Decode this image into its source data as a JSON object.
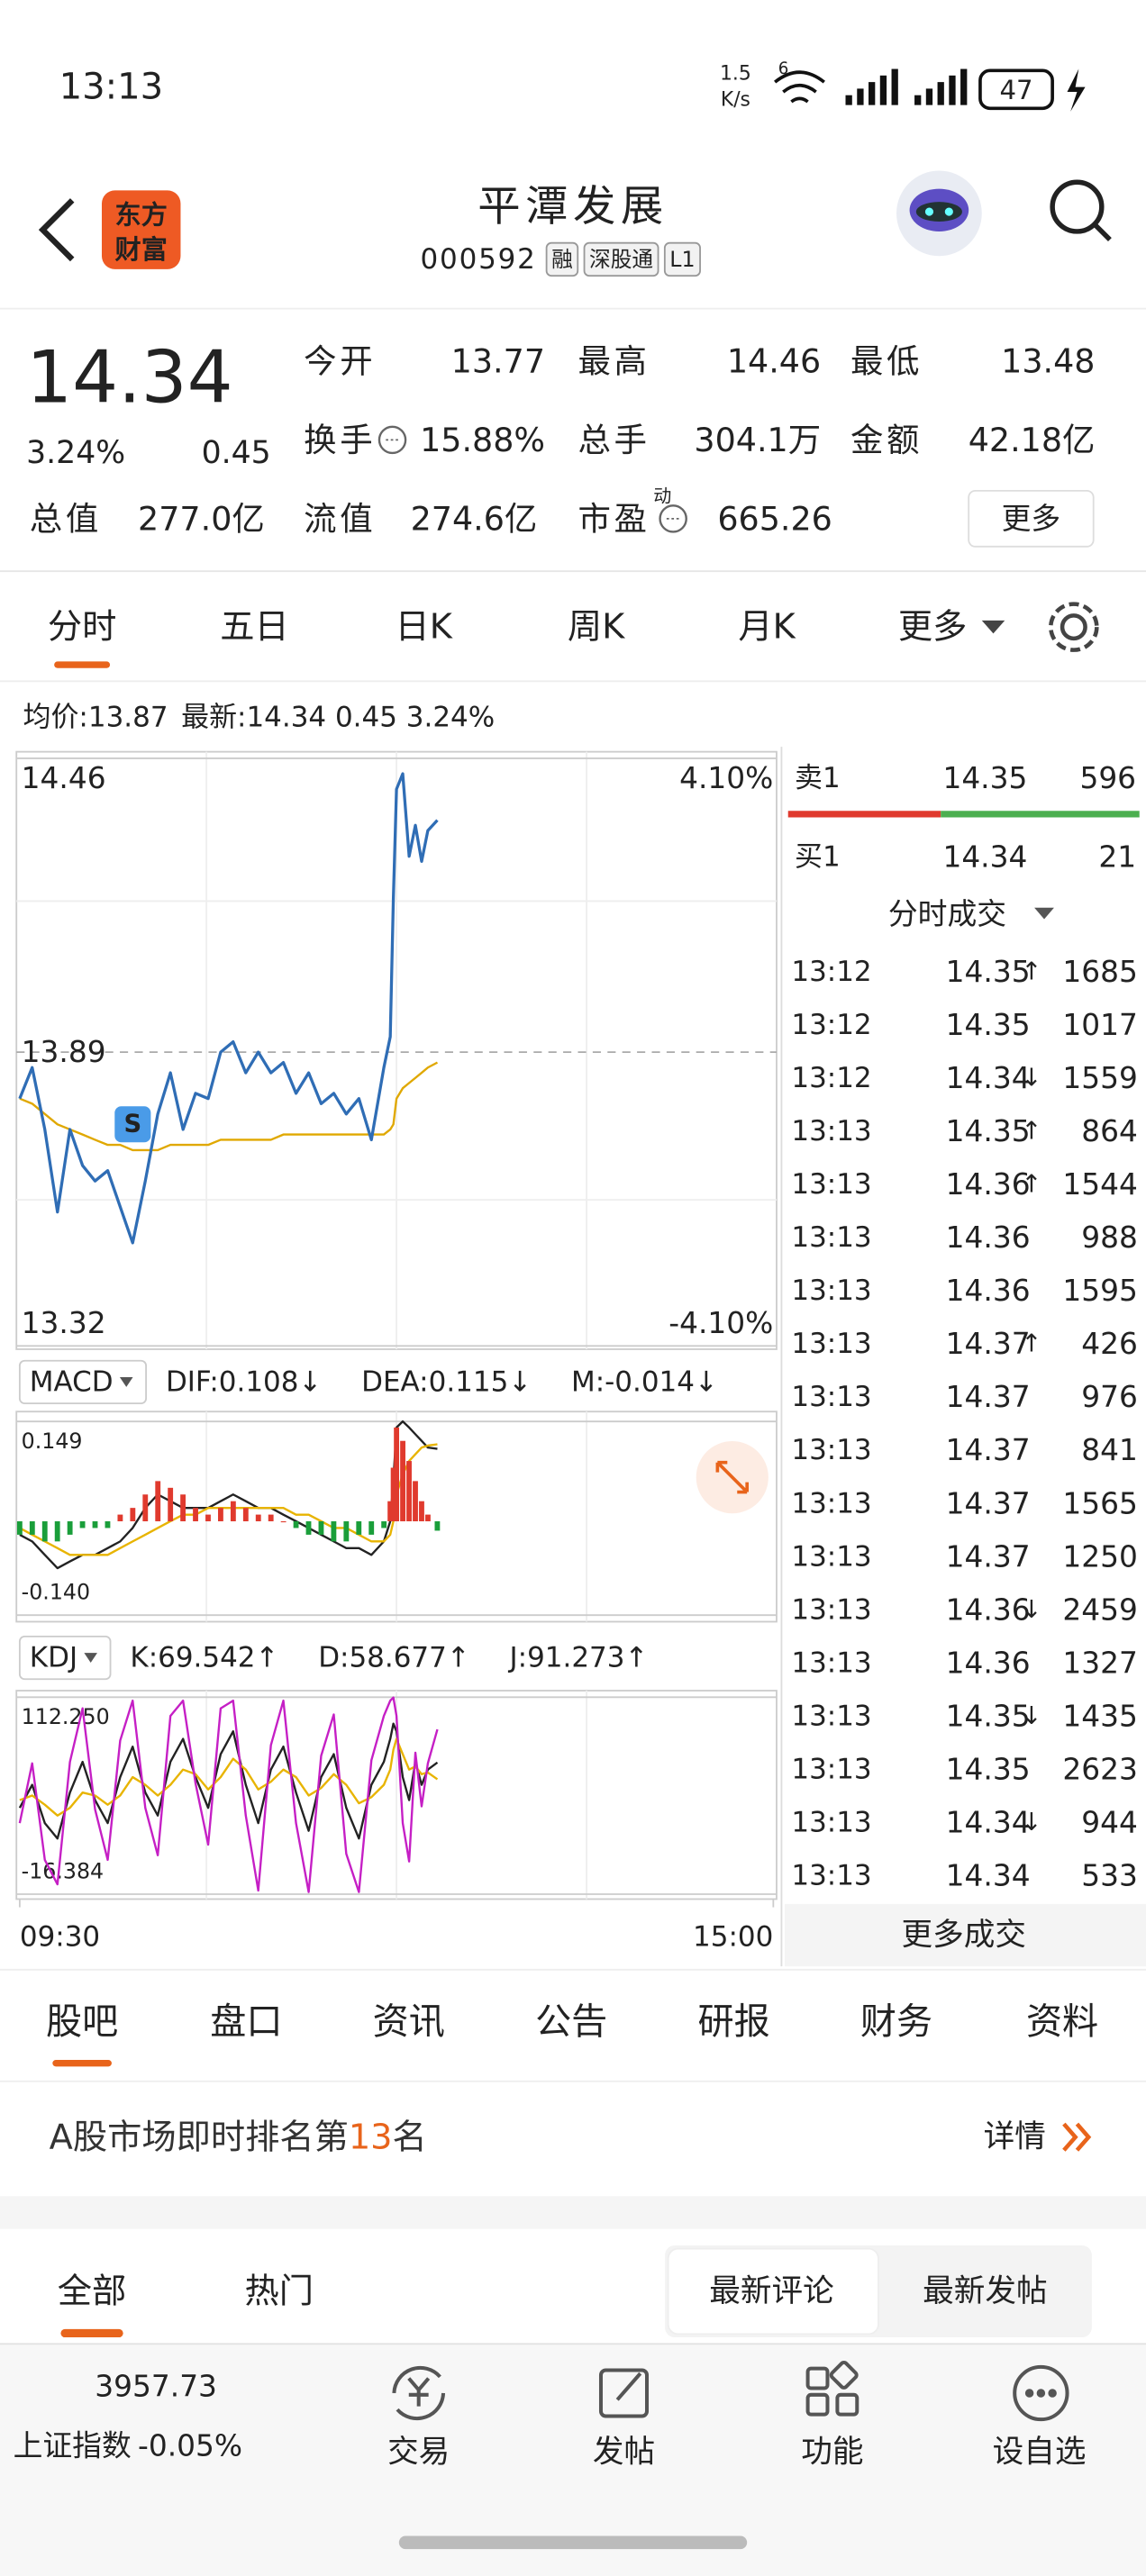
{
  "status": {
    "time": "13:13",
    "speed": "1.5",
    "speed_unit": "K/s",
    "wifi_label": "6",
    "battery": "47"
  },
  "header": {
    "logo": [
      "东方",
      "财富"
    ],
    "title": "平潭发展",
    "code": "000592",
    "tags": [
      "融",
      "深股通",
      "L1"
    ]
  },
  "quote": {
    "price": "14.34",
    "change_pct": "3.24%",
    "change": "0.45",
    "color": "#e03a2e",
    "stats": [
      [
        {
          "label": "今开",
          "value": "13.77",
          "color": "#1a9e3a"
        },
        {
          "label": "最高",
          "value": "14.46",
          "color": "#e03a2e"
        },
        {
          "label": "最低",
          "value": "13.48",
          "color": "#1a9e3a"
        }
      ],
      [
        {
          "label": "换手",
          "value": "15.88%",
          "icon": true
        },
        {
          "label": "总手",
          "value": "304.1万"
        },
        {
          "label": "金额",
          "value": "42.18亿"
        }
      ],
      [
        {
          "label": "总值",
          "value": "277.0亿"
        },
        {
          "label": "流值",
          "value": "274.6亿"
        },
        {
          "label": "市盈",
          "sup": "动",
          "value": "665.26",
          "icon": true
        }
      ]
    ],
    "more": "更多"
  },
  "period_tabs": {
    "items": [
      "分时",
      "五日",
      "日K",
      "周K",
      "月K",
      "更多"
    ],
    "active": 0
  },
  "chart_data": [
    {
      "type": "line",
      "x": [
        "09:30",
        "09:34",
        "09:38",
        "09:42",
        "09:46",
        "09:50",
        "09:54",
        "09:58",
        "10:02",
        "10:06",
        "10:10",
        "10:14",
        "10:18",
        "10:22",
        "10:26",
        "10:30",
        "10:34",
        "10:38",
        "10:42",
        "10:46",
        "10:50",
        "10:54",
        "10:58",
        "11:02",
        "11:06",
        "11:10",
        "11:14",
        "11:18",
        "11:22",
        "11:26",
        "11:28",
        "11:29",
        "13:00",
        "13:02",
        "13:04",
        "13:06",
        "13:08",
        "13:10",
        "13:13"
      ],
      "xlim": [
        "09:30",
        "15:00"
      ],
      "xticks": [
        "09:30",
        "15:00"
      ],
      "ylim": [
        13.32,
        14.46
      ],
      "yticks": [
        13.32,
        13.89,
        14.46
      ],
      "y2lim": [
        -4.1,
        4.1
      ],
      "y2ticks": [
        {
          "value": -4.1,
          "label": "-4.10%"
        },
        {
          "value": 4.1,
          "label": "4.10%"
        }
      ],
      "series": [
        {
          "name": "均价:13.87",
          "color": "#e0a800",
          "values": [
            13.8,
            13.79,
            13.77,
            13.75,
            13.74,
            13.73,
            13.72,
            13.71,
            13.71,
            13.7,
            13.7,
            13.7,
            13.71,
            13.71,
            13.71,
            13.71,
            13.72,
            13.72,
            13.72,
            13.72,
            13.72,
            13.73,
            13.73,
            13.73,
            13.73,
            13.73,
            13.73,
            13.73,
            13.73,
            13.73,
            13.74,
            13.75,
            13.8,
            13.82,
            13.83,
            13.84,
            13.85,
            13.86,
            13.87
          ]
        },
        {
          "name": "最新:14.34 0.45 3.24%",
          "color": "#2f6db5",
          "values": [
            13.8,
            13.86,
            13.74,
            13.58,
            13.74,
            13.67,
            13.64,
            13.66,
            13.59,
            13.52,
            13.64,
            13.77,
            13.85,
            13.74,
            13.81,
            13.8,
            13.89,
            13.91,
            13.85,
            13.89,
            13.85,
            13.87,
            13.81,
            13.85,
            13.79,
            13.81,
            13.77,
            13.8,
            13.72,
            13.86,
            13.92,
            14.19,
            14.4,
            14.43,
            14.27,
            14.33,
            14.26,
            14.32,
            14.34
          ]
        }
      ],
      "annotations": [
        {
          "text": "S",
          "x": "10:06",
          "y": 13.75
        }
      ]
    },
    {
      "type": "combo",
      "title": "MACD",
      "x": [
        "09:30",
        "09:34",
        "09:38",
        "09:42",
        "09:46",
        "09:50",
        "09:54",
        "09:58",
        "10:02",
        "10:06",
        "10:10",
        "10:14",
        "10:18",
        "10:22",
        "10:26",
        "10:30",
        "10:34",
        "10:38",
        "10:42",
        "10:46",
        "10:50",
        "10:54",
        "10:58",
        "11:02",
        "11:06",
        "11:10",
        "11:14",
        "11:18",
        "11:22",
        "11:26",
        "11:28",
        "11:29",
        "13:00",
        "13:02",
        "13:04",
        "13:06",
        "13:08",
        "13:10",
        "13:13"
      ],
      "xlim": [
        "09:30",
        "15:00"
      ],
      "ylim": [
        -0.14,
        0.149
      ],
      "yticks": [
        {
          "value": -0.14,
          "label": "-0.140"
        },
        0.149
      ],
      "series": [
        {
          "name": "DIF:0.108↓",
          "color": "#222222",
          "values": [
            -0.02,
            -0.03,
            -0.05,
            -0.07,
            -0.06,
            -0.05,
            -0.05,
            -0.04,
            -0.03,
            -0.01,
            0.02,
            0.04,
            0.03,
            0.02,
            0.02,
            0.02,
            0.03,
            0.04,
            0.03,
            0.02,
            0.02,
            0.01,
            0.0,
            -0.01,
            -0.02,
            -0.03,
            -0.04,
            -0.04,
            -0.05,
            -0.03,
            0.0,
            0.06,
            0.14,
            0.149,
            0.14,
            0.13,
            0.12,
            0.11,
            0.108
          ]
        },
        {
          "name": "DEA:0.115↓",
          "color": "#e8b400",
          "values": [
            -0.01,
            -0.02,
            -0.03,
            -0.04,
            -0.05,
            -0.05,
            -0.05,
            -0.05,
            -0.04,
            -0.03,
            -0.02,
            -0.01,
            0.0,
            0.01,
            0.01,
            0.02,
            0.02,
            0.02,
            0.02,
            0.02,
            0.02,
            0.02,
            0.01,
            0.01,
            0.0,
            -0.01,
            -0.01,
            -0.02,
            -0.03,
            -0.03,
            -0.02,
            0.0,
            0.04,
            0.07,
            0.09,
            0.1,
            0.11,
            0.113,
            0.115
          ]
        },
        {
          "name": "M:-0.014↓",
          "type": "bar",
          "color": "#c51fc5",
          "positive_color": "#e03a2e",
          "negative_color": "#1a9e3a",
          "values": [
            -0.02,
            -0.02,
            -0.03,
            -0.03,
            -0.02,
            -0.01,
            -0.01,
            -0.01,
            0.01,
            0.02,
            0.04,
            0.06,
            0.05,
            0.04,
            0.02,
            0.01,
            0.02,
            0.03,
            0.02,
            0.01,
            0.01,
            0.0,
            -0.01,
            -0.02,
            -0.02,
            -0.03,
            -0.03,
            -0.02,
            -0.02,
            -0.01,
            0.03,
            0.08,
            0.14,
            0.12,
            0.09,
            0.06,
            0.03,
            0.01,
            -0.014
          ]
        }
      ]
    },
    {
      "type": "combo",
      "title": "KDJ",
      "x": [
        "09:30",
        "09:34",
        "09:38",
        "09:42",
        "09:46",
        "09:50",
        "09:54",
        "09:58",
        "10:02",
        "10:06",
        "10:10",
        "10:14",
        "10:18",
        "10:22",
        "10:26",
        "10:30",
        "10:34",
        "10:38",
        "10:42",
        "10:46",
        "10:50",
        "10:54",
        "10:58",
        "11:02",
        "11:06",
        "11:10",
        "11:14",
        "11:18",
        "11:22",
        "11:26",
        "11:28",
        "11:29",
        "13:00",
        "13:02",
        "13:04",
        "13:06",
        "13:08",
        "13:10",
        "13:13"
      ],
      "xlim": [
        "09:30",
        "15:00"
      ],
      "ylim": [
        -16.384,
        112.25
      ],
      "yticks": [
        -16.384,
        {
          "value": 112.25,
          "label": "112.250"
        }
      ],
      "series": [
        {
          "name": "K:69.542↑",
          "color": "#222222",
          "values": [
            40,
            55,
            30,
            20,
            50,
            70,
            45,
            30,
            60,
            80,
            50,
            35,
            70,
            85,
            60,
            40,
            75,
            90,
            55,
            30,
            65,
            80,
            50,
            25,
            60,
            75,
            40,
            20,
            55,
            70,
            85,
            95,
            90,
            60,
            45,
            70,
            55,
            65,
            69.542
          ]
        },
        {
          "name": "D:58.677↑",
          "color": "#e8b400",
          "values": [
            45,
            48,
            42,
            35,
            40,
            50,
            48,
            42,
            48,
            60,
            55,
            48,
            55,
            65,
            62,
            52,
            60,
            72,
            65,
            52,
            57,
            65,
            60,
            48,
            53,
            62,
            55,
            43,
            47,
            55,
            65,
            78,
            85,
            75,
            65,
            67,
            62,
            63,
            58.677
          ]
        },
        {
          "name": "J:91.273↑",
          "color": "#c51fc5",
          "values": [
            30,
            69,
            6,
            -10,
            70,
            105,
            39,
            6,
            84,
            110,
            40,
            9,
            100,
            110,
            56,
            16,
            105,
            110,
            35,
            -14,
            81,
            110,
            30,
            -15,
            74,
            101,
            10,
            -15,
            71,
            100,
            110,
            112,
            100,
            30,
            5,
            76,
            41,
            69,
            91.273
          ]
        }
      ]
    }
  ],
  "order_book": {
    "sell": {
      "label": "卖1",
      "price": "14.35",
      "volume": "596"
    },
    "buy": {
      "label": "买1",
      "price": "14.34",
      "volume": "21"
    }
  },
  "trades": {
    "title": "分时成交",
    "more": "更多成交",
    "rows": [
      {
        "time": "13:12",
        "price": "14.35",
        "arrow": "↑",
        "volume": "1685",
        "color": "red"
      },
      {
        "time": "13:12",
        "price": "14.35",
        "volume": "1017",
        "color": "red"
      },
      {
        "time": "13:12",
        "price": "14.34",
        "arrow": "↓",
        "volume": "1559",
        "color": "green"
      },
      {
        "time": "13:13",
        "price": "14.35",
        "arrow": "↑",
        "volume": "864",
        "color": "red"
      },
      {
        "time": "13:13",
        "price": "14.36",
        "arrow": "↑",
        "volume": "1544",
        "color": "red"
      },
      {
        "time": "13:13",
        "price": "14.36",
        "volume": "988",
        "color": "red"
      },
      {
        "time": "13:13",
        "price": "14.36",
        "volume": "1595",
        "color": "red"
      },
      {
        "time": "13:13",
        "price": "14.37",
        "arrow": "↑",
        "volume": "426",
        "color": "red"
      },
      {
        "time": "13:13",
        "price": "14.37",
        "volume": "976",
        "color": "red"
      },
      {
        "time": "13:13",
        "price": "14.37",
        "volume": "841",
        "color": "red"
      },
      {
        "time": "13:13",
        "price": "14.37",
        "volume": "1565",
        "color": "green"
      },
      {
        "time": "13:13",
        "price": "14.37",
        "volume": "1250",
        "color": "green"
      },
      {
        "time": "13:13",
        "price": "14.36",
        "arrow": "↓",
        "volume": "2459",
        "color": "green"
      },
      {
        "time": "13:13",
        "price": "14.36",
        "volume": "1327",
        "color": "green"
      },
      {
        "time": "13:13",
        "price": "14.35",
        "arrow": "↓",
        "volume": "1435",
        "color": "green"
      },
      {
        "time": "13:13",
        "price": "14.35",
        "volume": "2623",
        "color": "green"
      },
      {
        "time": "13:13",
        "price": "14.34",
        "arrow": "↓",
        "volume": "944",
        "color": "green"
      },
      {
        "time": "13:13",
        "price": "14.34",
        "volume": "533",
        "color": "green"
      }
    ]
  },
  "section_tabs": {
    "items": [
      "股吧",
      "盘口",
      "资讯",
      "公告",
      "研报",
      "财务",
      "资料"
    ],
    "active": 0
  },
  "rank": {
    "prefix": "A股市场即时排名第",
    "rank": "13",
    "suffix": "名",
    "link": "详情"
  },
  "feed_tabs": {
    "items": [
      "全部",
      "热门"
    ],
    "active": 0,
    "sort": [
      "最新评论",
      "最新发帖"
    ],
    "sort_active": 0
  },
  "bottom_bar": {
    "index_value": "3957.73",
    "index_name": "上证指数",
    "index_change": "-0.05%",
    "items": [
      "交易",
      "发帖",
      "功能",
      "设自选"
    ]
  }
}
